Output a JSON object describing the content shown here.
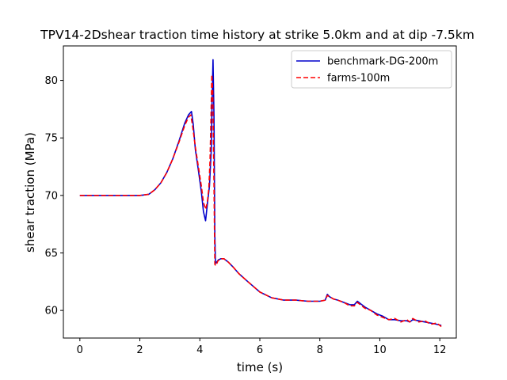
{
  "chart_data": {
    "type": "line",
    "title": "TPV14-2Dshear traction time history at strike 5.0km and at dip -7.5km",
    "xlabel": "time (s)",
    "ylabel": "shear traction (MPa)",
    "xlim": [
      -0.55,
      12.55
    ],
    "ylim": [
      57.6,
      83.0
    ],
    "xticks": [
      0,
      2,
      4,
      6,
      8,
      10,
      12
    ],
    "yticks": [
      60,
      65,
      70,
      75,
      80
    ],
    "grid": false,
    "legend_position": "top-right",
    "series": [
      {
        "name": "benchmark-DG-200m",
        "color": "#0000cc",
        "style": "solid",
        "x": [
          0,
          1.0,
          2.0,
          2.3,
          2.5,
          2.7,
          2.9,
          3.1,
          3.3,
          3.5,
          3.62,
          3.72,
          3.78,
          3.85,
          3.95,
          4.05,
          4.12,
          4.19,
          4.25,
          4.32,
          4.38,
          4.41,
          4.44,
          4.47,
          4.5,
          4.52,
          4.56,
          4.62,
          4.7,
          4.8,
          4.95,
          5.1,
          5.3,
          5.6,
          6.0,
          6.4,
          6.8,
          7.2,
          7.6,
          8.0,
          8.18,
          8.25,
          8.32,
          8.45,
          8.6,
          8.8,
          9.0,
          9.15,
          9.25,
          9.35,
          9.5,
          9.7,
          9.9,
          10.1,
          10.3,
          10.5,
          10.7,
          10.9,
          11.0,
          11.1,
          11.3,
          11.5,
          11.7,
          11.9,
          12.05
        ],
        "y": [
          70.0,
          70.0,
          70.0,
          70.1,
          70.5,
          71.1,
          72.0,
          73.2,
          74.7,
          76.3,
          77.0,
          77.3,
          76.2,
          74.0,
          72.2,
          70.3,
          68.6,
          67.8,
          69.2,
          70.8,
          74.0,
          78.5,
          81.8,
          77.0,
          66.5,
          64.1,
          64.2,
          64.4,
          64.5,
          64.5,
          64.2,
          63.8,
          63.2,
          62.5,
          61.6,
          61.1,
          60.9,
          60.9,
          60.8,
          60.8,
          60.9,
          61.4,
          61.2,
          61.0,
          60.9,
          60.7,
          60.5,
          60.5,
          60.8,
          60.6,
          60.3,
          60.0,
          59.7,
          59.5,
          59.2,
          59.2,
          59.1,
          59.1,
          59.0,
          59.2,
          59.1,
          59.0,
          58.9,
          58.8,
          58.7
        ]
      },
      {
        "name": "farms-100m",
        "color": "#ff0000",
        "style": "dashed",
        "x": [
          0,
          1.0,
          2.0,
          2.3,
          2.5,
          2.7,
          2.9,
          3.1,
          3.3,
          3.5,
          3.62,
          3.7,
          3.76,
          3.85,
          3.95,
          4.05,
          4.12,
          4.19,
          4.25,
          4.3,
          4.34,
          4.37,
          4.4,
          4.43,
          4.47,
          4.5,
          4.54,
          4.6,
          4.7,
          4.8,
          4.95,
          5.1,
          5.3,
          5.6,
          6.0,
          6.4,
          6.8,
          7.2,
          7.6,
          8.0,
          8.18,
          8.25,
          8.32,
          8.45,
          8.6,
          8.8,
          9.0,
          9.15,
          9.25,
          9.35,
          9.5,
          9.7,
          9.9,
          10.1,
          10.3,
          10.5,
          10.7,
          10.9,
          11.0,
          11.1,
          11.3,
          11.5,
          11.7,
          11.9,
          12.05
        ],
        "y": [
          70.0,
          70.0,
          70.0,
          70.1,
          70.5,
          71.1,
          72.0,
          73.2,
          74.6,
          76.1,
          76.8,
          77.0,
          76.0,
          74.2,
          72.5,
          70.8,
          69.4,
          68.8,
          69.4,
          70.6,
          73.0,
          76.6,
          80.5,
          79.0,
          71.0,
          64.0,
          63.9,
          64.3,
          64.5,
          64.5,
          64.2,
          63.8,
          63.2,
          62.5,
          61.6,
          61.1,
          60.9,
          60.9,
          60.8,
          60.8,
          60.9,
          61.3,
          61.2,
          61.0,
          60.9,
          60.7,
          60.4,
          60.4,
          60.7,
          60.5,
          60.2,
          60.0,
          59.6,
          59.4,
          59.2,
          59.3,
          59.0,
          59.2,
          59.0,
          59.3,
          59.0,
          59.1,
          58.8,
          58.9,
          58.6
        ]
      }
    ]
  }
}
